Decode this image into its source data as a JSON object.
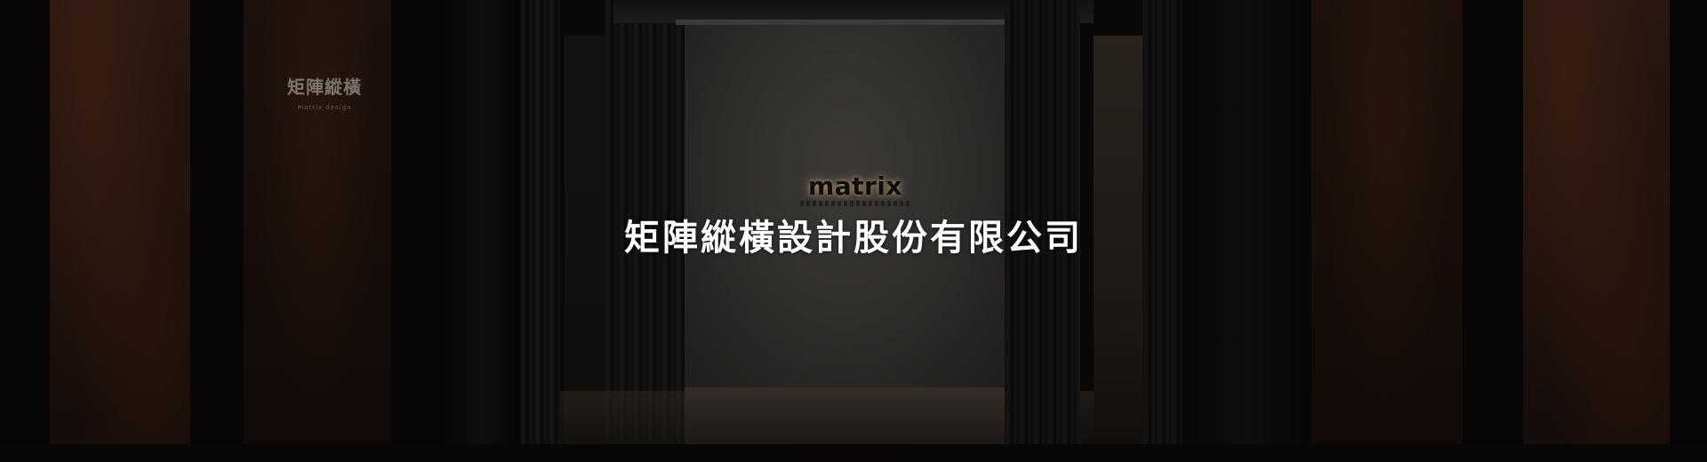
{
  "hero": {
    "heading": "矩陣縱橫設計股份有限公司",
    "logo_text": "matrix",
    "wall_sign": {
      "title": "矩陣縱橫",
      "subtitle": "matrix design"
    }
  },
  "colors": {
    "heading": "#ffffff",
    "rust": "#3a2117",
    "back_wall": "#45423e"
  }
}
